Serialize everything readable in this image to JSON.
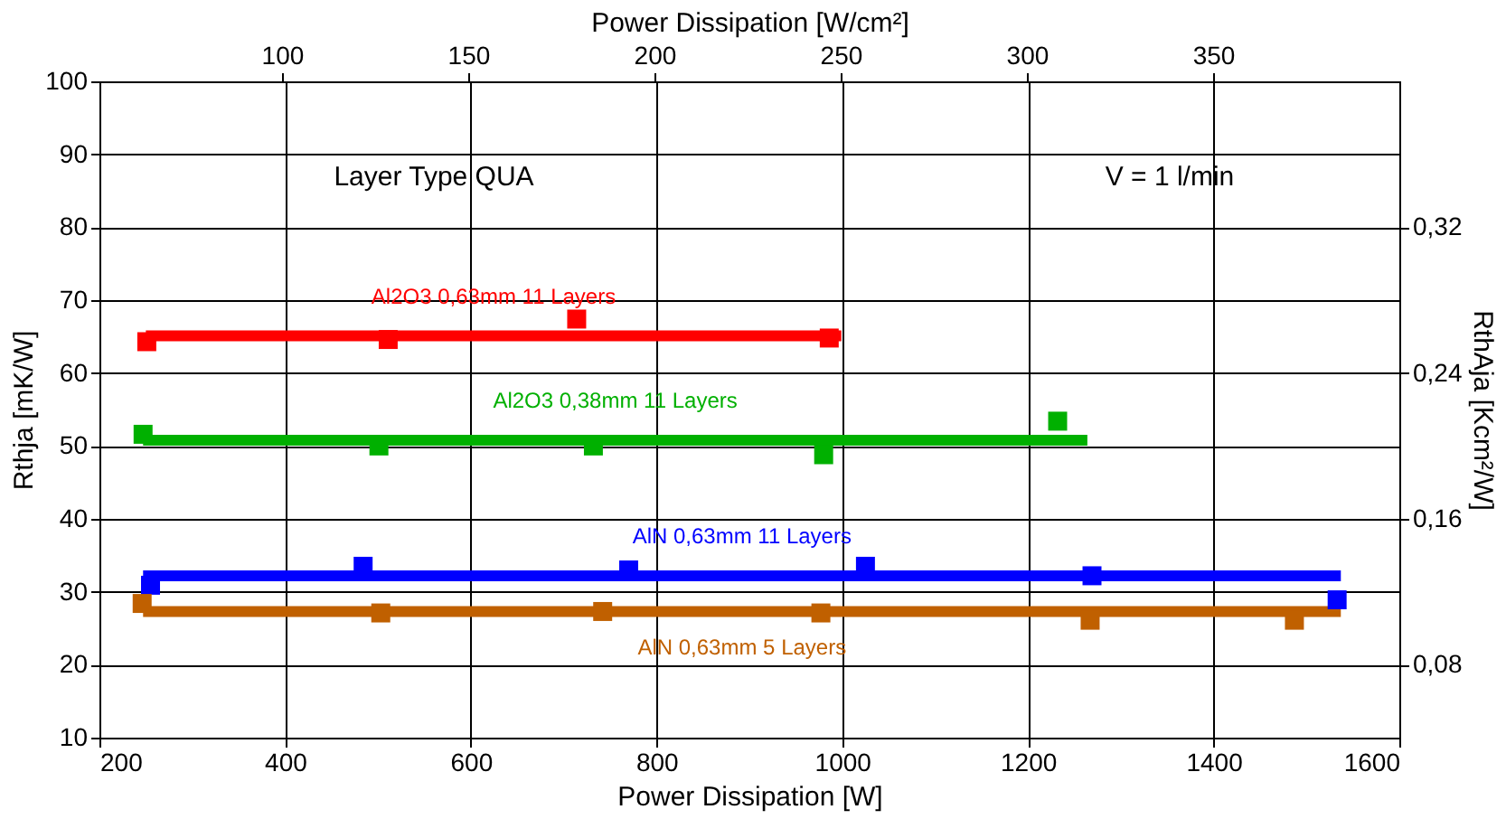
{
  "chart_data": {
    "type": "scatter",
    "xlabel": "Power Dissipation [W]",
    "ylabel": "Rthja [mK/W]",
    "y2label": "RthAja [Kcm²/W]",
    "x2label": "Power Dissipation [W/cm²]",
    "xlim": [
      200,
      1600
    ],
    "xticks": [
      200,
      400,
      600,
      800,
      1000,
      1200,
      1400,
      1600
    ],
    "ylim": [
      10,
      100
    ],
    "yticks": [
      10,
      20,
      30,
      40,
      50,
      60,
      70,
      80,
      90,
      100
    ],
    "x2lim": [
      51,
      400
    ],
    "x2ticks": [
      100,
      150,
      200,
      250,
      300,
      350
    ],
    "y2lim": [
      0.04,
      0.4
    ],
    "y2ticks": [
      {
        "value": 0.08,
        "label": "0,08"
      },
      {
        "value": 0.16,
        "label": "0,16"
      },
      {
        "value": 0.24,
        "label": "0,24"
      },
      {
        "value": 0.32,
        "label": "0,32"
      }
    ],
    "grid": true,
    "legend": false,
    "marker": "square",
    "annotations": [
      "Layer Type QUA",
      "V = 1 l/min"
    ],
    "series": [
      {
        "color": "#ff0000",
        "x": [
          251,
          511,
          714,
          986
        ],
        "values": [
          64.3,
          64.6,
          67.4,
          64.8
        ]
      },
      {
        "type": "line",
        "marker": "none",
        "name": "Al2O3 0,63mm 11 Layers",
        "color": "#ff0000",
        "x": [
          250,
          999
        ],
        "values": [
          65.1,
          65.1
        ]
      },
      {
        "color": "#00b000",
        "x": [
          247,
          501,
          732,
          980,
          1232
        ],
        "values": [
          51.6,
          50,
          50,
          48.8,
          53.4
        ]
      },
      {
        "type": "line",
        "marker": "none",
        "name": "Al2O3 0,38mm 11 Layers",
        "color": "#00b000",
        "x": [
          247,
          1264
        ],
        "values": [
          50.8,
          50.8
        ]
      },
      {
        "color": "#0000ff",
        "x": [
          255,
          484,
          770,
          1025,
          1269,
          1533
        ],
        "values": [
          30.9,
          33.5,
          33,
          33.5,
          32.2,
          28.9
        ]
      },
      {
        "type": "line",
        "marker": "none",
        "name": "AlN 0,63mm 11 Layers",
        "color": "#0000ff",
        "x": [
          247,
          1537
        ],
        "values": [
          32.2,
          32.2
        ]
      },
      {
        "color": "#c06000",
        "x": [
          246,
          503,
          742,
          977,
          1267,
          1487
        ],
        "values": [
          28.4,
          27.1,
          27.3,
          27.1,
          26.1,
          26.1
        ]
      },
      {
        "type": "line",
        "marker": "none",
        "name": "AlN 0,63mm 5 Layers",
        "color": "#c06000",
        "x": [
          247,
          1537
        ],
        "values": [
          27.3,
          27.3
        ]
      }
    ]
  }
}
